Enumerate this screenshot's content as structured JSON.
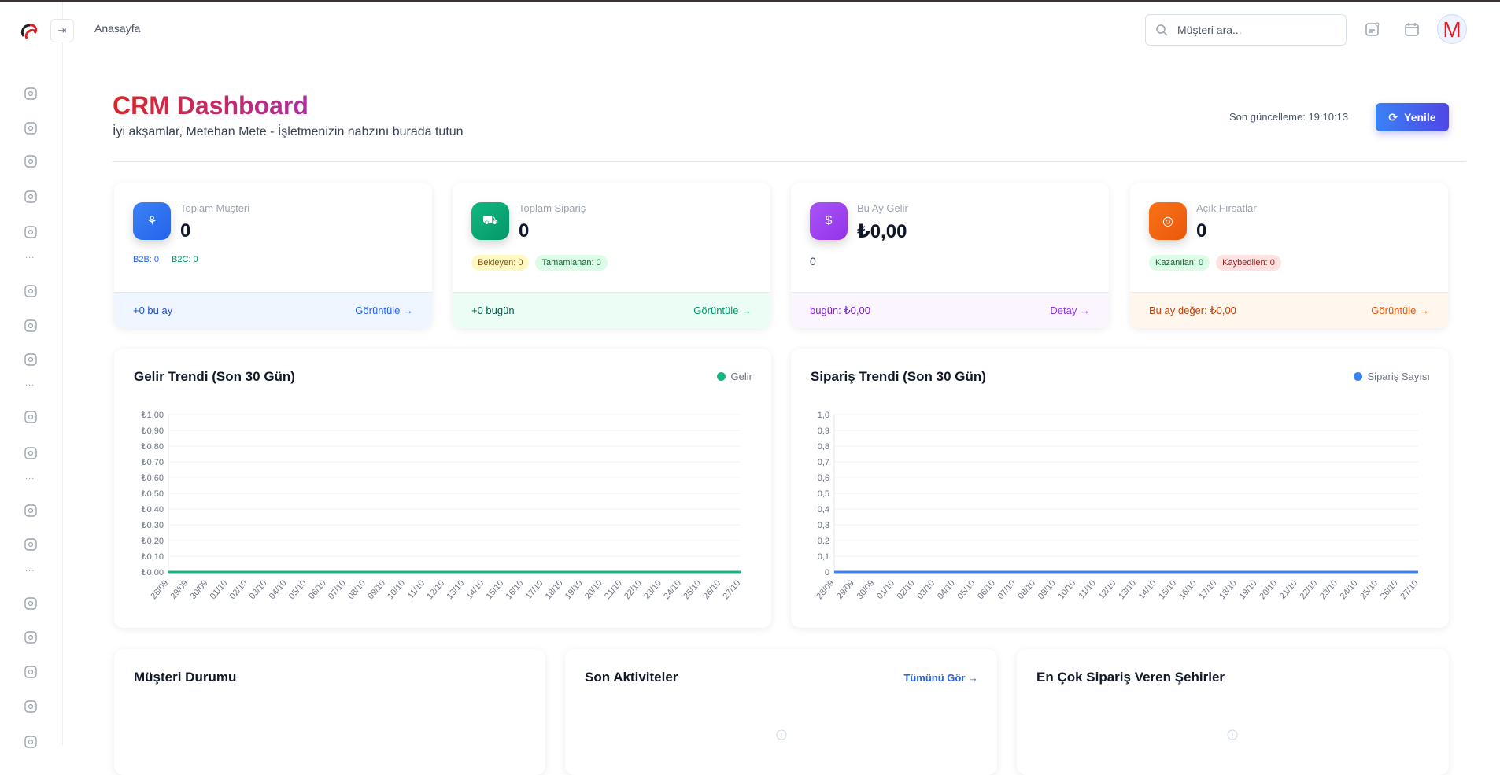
{
  "header": {
    "breadcrumb": "Anasayfa",
    "search_placeholder": "Müşteri ara...",
    "avatar_letter": "M"
  },
  "sidebar": {
    "icons": [
      "building-icon",
      "shield-icon",
      "clipboard-icon",
      "network-icon",
      "document-chart-icon",
      "message-icon",
      "hierarchy-icon",
      "briefcase-icon",
      "wallet-icon",
      "pie-chart-icon",
      "help-icon",
      "book-icon",
      "receipt-icon",
      "calendar-icon",
      "users-icon",
      "settings-icon",
      "camera-icon"
    ],
    "separator": "..."
  },
  "page": {
    "title": "CRM Dashboard",
    "subtitle": "İyi akşamlar, Metehan Mete - İşletmenizin nabzını burada tutun",
    "last_update": "Son güncelleme: 19:10:13",
    "refresh_label": "Yenile"
  },
  "cards": [
    {
      "label": "Toplam Müşteri",
      "value": "0",
      "sub": [
        "B2B: 0",
        "B2C: 0"
      ],
      "foot": "+0 bu ay",
      "link": "Görüntüle →",
      "color": "#3b82f6"
    },
    {
      "label": "Toplam Sipariş",
      "value": "0",
      "sub": [
        "Bekleyen: 0",
        "Tamamlanan: 0"
      ],
      "foot": "+0 bugün",
      "link": "Görüntüle →",
      "color": "#10b981"
    },
    {
      "label": "Bu Ay Gelir",
      "value": "₺0,00",
      "sub": [
        "0"
      ],
      "foot": "bugün: ₺0,00",
      "link": "Detay →",
      "color": "#9333ea"
    },
    {
      "label": "Açık Fırsatlar",
      "value": "0",
      "sub": [
        "Kazanılan: 0",
        "Kaybedilen: 0"
      ],
      "foot": "Bu ay değer: ₺0,00",
      "link": "Görüntüle →",
      "color": "#f97316"
    }
  ],
  "panels": {
    "customer_status": "Müşteri Durumu",
    "activities": "Son Aktiviteler",
    "activities_link": "Tümünü Gör →",
    "top_cities": "En Çok Sipariş Veren Şehirler"
  },
  "chart_data": [
    {
      "type": "line",
      "title": "Gelir Trendi (Son 30 Gün)",
      "legend": "top-right",
      "grid": true,
      "categories": [
        "28/09",
        "29/09",
        "30/09",
        "01/10",
        "02/10",
        "03/10",
        "04/10",
        "05/10",
        "06/10",
        "07/10",
        "08/10",
        "09/10",
        "10/10",
        "11/10",
        "12/10",
        "13/10",
        "14/10",
        "15/10",
        "16/10",
        "17/10",
        "18/10",
        "19/10",
        "20/10",
        "21/10",
        "22/10",
        "23/10",
        "24/10",
        "25/10",
        "26/10",
        "27/10"
      ],
      "series": [
        {
          "name": "Gelir",
          "color": "#10b981",
          "values": [
            0,
            0,
            0,
            0,
            0,
            0,
            0,
            0,
            0,
            0,
            0,
            0,
            0,
            0,
            0,
            0,
            0,
            0,
            0,
            0,
            0,
            0,
            0,
            0,
            0,
            0,
            0,
            0,
            0,
            0
          ]
        }
      ],
      "ylim": [
        0,
        1
      ],
      "yticks": [
        "₺0,00",
        "₺0,10",
        "₺0,20",
        "₺0,30",
        "₺0,40",
        "₺0,50",
        "₺0,60",
        "₺0,70",
        "₺0,80",
        "₺0,90",
        "₺1,00"
      ]
    },
    {
      "type": "line",
      "title": "Sipariş Trendi (Son 30 Gün)",
      "legend": "top-right",
      "grid": true,
      "categories": [
        "28/09",
        "29/09",
        "30/09",
        "01/10",
        "02/10",
        "03/10",
        "04/10",
        "05/10",
        "06/10",
        "07/10",
        "08/10",
        "09/10",
        "10/10",
        "11/10",
        "12/10",
        "13/10",
        "14/10",
        "15/10",
        "16/10",
        "17/10",
        "18/10",
        "19/10",
        "20/10",
        "21/10",
        "22/10",
        "23/10",
        "24/10",
        "25/10",
        "26/10",
        "27/10"
      ],
      "series": [
        {
          "name": "Sipariş Sayısı",
          "color": "#3b82f6",
          "values": [
            0,
            0,
            0,
            0,
            0,
            0,
            0,
            0,
            0,
            0,
            0,
            0,
            0,
            0,
            0,
            0,
            0,
            0,
            0,
            0,
            0,
            0,
            0,
            0,
            0,
            0,
            0,
            0,
            0,
            0
          ]
        }
      ],
      "ylim": [
        0,
        1
      ],
      "yticks": [
        "0",
        "0,1",
        "0,2",
        "0,3",
        "0,4",
        "0,5",
        "0,6",
        "0,7",
        "0,8",
        "0,9",
        "1,0"
      ]
    }
  ]
}
